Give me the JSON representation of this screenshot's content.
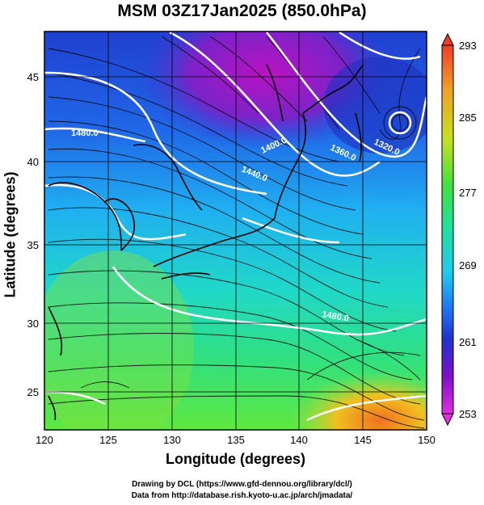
{
  "title": "MSM 03Z17Jan2025 (850.0hPa)",
  "axes": {
    "xlabel": "Longitude (degrees)",
    "ylabel": "Latitude  (degrees)",
    "x_ticks": [
      "120",
      "125",
      "130",
      "135",
      "140",
      "145",
      "150"
    ],
    "y_ticks": [
      "25",
      "30",
      "35",
      "40",
      "45"
    ],
    "xlim": [
      120,
      150
    ],
    "ylim": [
      22.5,
      47.5
    ]
  },
  "colorbar": {
    "ticks": [
      "293",
      "285",
      "277",
      "269",
      "261",
      "253"
    ],
    "range": [
      253,
      293
    ],
    "colors": [
      "#f03c28",
      "#f0a028",
      "#e8e020",
      "#a0e040",
      "#40e040",
      "#20e0a0",
      "#20d0e8",
      "#2080f0",
      "#2030d0",
      "#6010c0",
      "#b010c0",
      "#e030e0"
    ]
  },
  "contour_labels": [
    {
      "text": "1400.0"
    },
    {
      "text": "1440.0"
    },
    {
      "text": "1360.0"
    },
    {
      "text": "1320.0"
    },
    {
      "text": "1480.0"
    },
    {
      "text": "1480.0"
    }
  ],
  "credits": [
    "Drawing by DCL (https://www.gfd-dennou.org/library/dcl/)",
    "Data from http://database.rish.kyoto-u.ac.jp/arch/jmadata/"
  ]
}
